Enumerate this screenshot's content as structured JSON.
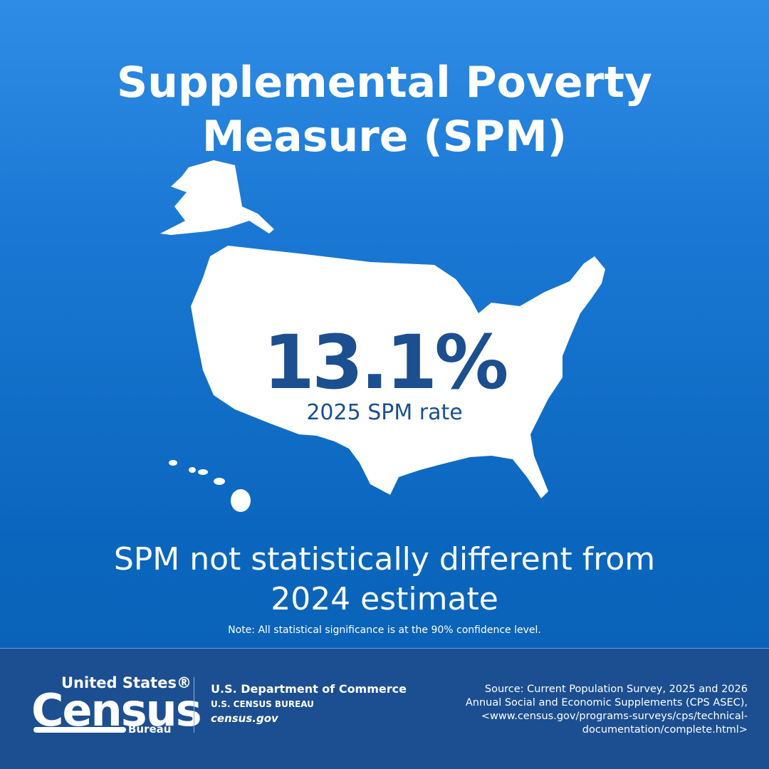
{
  "header": {
    "title_lines": [
      "Supplemental Poverty",
      "Measure (SPM)"
    ]
  },
  "stat": {
    "value": "13.1%",
    "label": "2025 SPM rate"
  },
  "statement_lines": [
    "SPM not statistically different from",
    "2024 estimate"
  ],
  "note": "Note: All statistical significance is at the 90% confidence level.",
  "footer": {
    "logo": {
      "top": "United States®",
      "main": "Census",
      "bottom": "Bureau"
    },
    "department": "U.S. Department of Commerce",
    "bureau": "U.S. CENSUS BUREAU",
    "website": "census.gov",
    "source_lines": [
      "Source: Current Population Survey, 2025 and 2026",
      "Annual Social and Economic Supplements (CPS ASEC),",
      "<www.census.gov/programs-surveys/cps/technical-",
      "documentation/complete.html>"
    ]
  }
}
